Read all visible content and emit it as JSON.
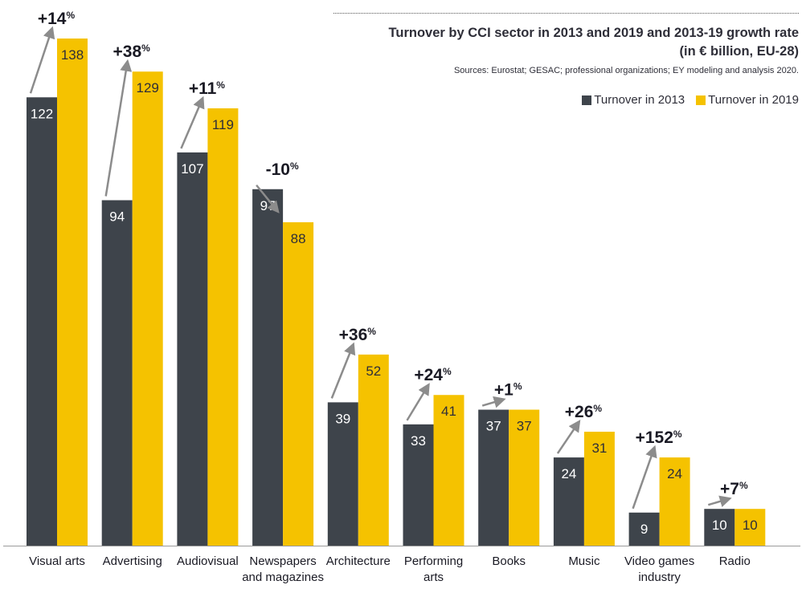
{
  "header": {
    "title": "Turnover by CCI sector in 2013 and 2019 and 2013-19 growth rate",
    "subtitle": "(in € billion, EU-28)",
    "source": "Sources: Eurostat; GESAC; professional organizations; EY modeling and analysis 2020."
  },
  "legend": {
    "items": [
      {
        "label": "Turnover in 2013",
        "color": "#3e444b"
      },
      {
        "label": "Turnover in 2019",
        "color": "#f5c200"
      }
    ]
  },
  "chart_data": {
    "type": "bar",
    "categories": [
      [
        "Visual arts"
      ],
      [
        "Advertising"
      ],
      [
        "Audiovisual"
      ],
      [
        "Newspapers",
        "and magazines"
      ],
      [
        "Architecture"
      ],
      [
        "Performing",
        "arts"
      ],
      [
        "Books"
      ],
      [
        "Music"
      ],
      [
        "Video games",
        "industry"
      ],
      [
        "Radio"
      ]
    ],
    "series": [
      {
        "name": "Turnover in 2013",
        "color": "#3e444b",
        "values": [
          122,
          94,
          107,
          97,
          39,
          33,
          37,
          24,
          9,
          10
        ]
      },
      {
        "name": "Turnover in 2019",
        "color": "#f5c200",
        "values": [
          138,
          129,
          119,
          88,
          52,
          41,
          37,
          31,
          24,
          10
        ]
      }
    ],
    "growth_labels": [
      "+14",
      "+38",
      "+11",
      "-10",
      "+36",
      "+24",
      "+1",
      "+26",
      "+152",
      "+7"
    ],
    "growth_unit": "%",
    "ylim": [
      0,
      138
    ],
    "grid": false,
    "legend_position": "top-right",
    "arrow_color": "#8c8c8c"
  }
}
